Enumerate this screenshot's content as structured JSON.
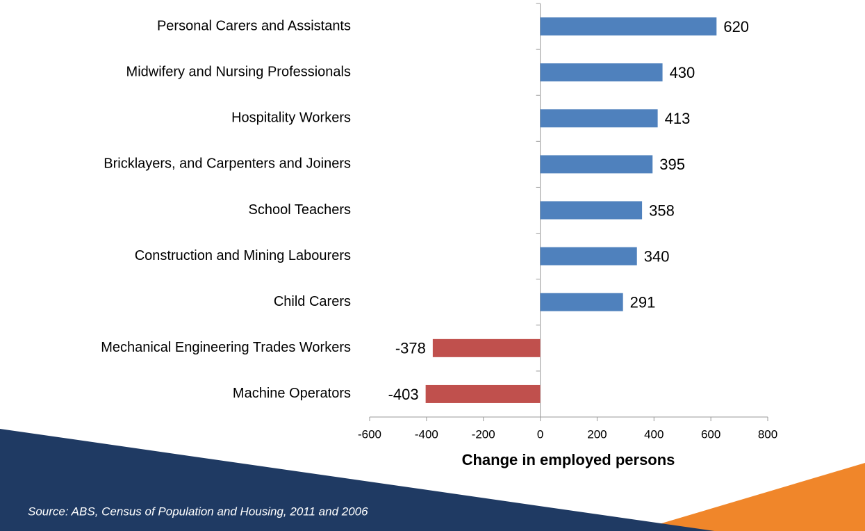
{
  "chart_data": {
    "type": "bar",
    "orientation": "horizontal",
    "categories": [
      "Personal Carers and Assistants",
      "Midwifery and Nursing Professionals",
      "Hospitality Workers",
      "Bricklayers, and Carpenters and Joiners",
      "School Teachers",
      "Construction and Mining Labourers",
      "Child Carers",
      "Mechanical Engineering Trades Workers",
      "Machine Operators"
    ],
    "values": [
      620,
      430,
      413,
      395,
      358,
      340,
      291,
      -378,
      -403
    ],
    "colors": [
      "#4f81bd",
      "#4f81bd",
      "#4f81bd",
      "#4f81bd",
      "#4f81bd",
      "#4f81bd",
      "#4f81bd",
      "#c0504d",
      "#c0504d"
    ],
    "xlabel": "Change in employed persons",
    "xlim": [
      -600,
      800
    ],
    "xticks": [
      -600,
      -400,
      -200,
      0,
      200,
      400,
      600,
      800
    ],
    "source": "Source: ABS, Census of Population and Housing, 2011 and 2006"
  }
}
